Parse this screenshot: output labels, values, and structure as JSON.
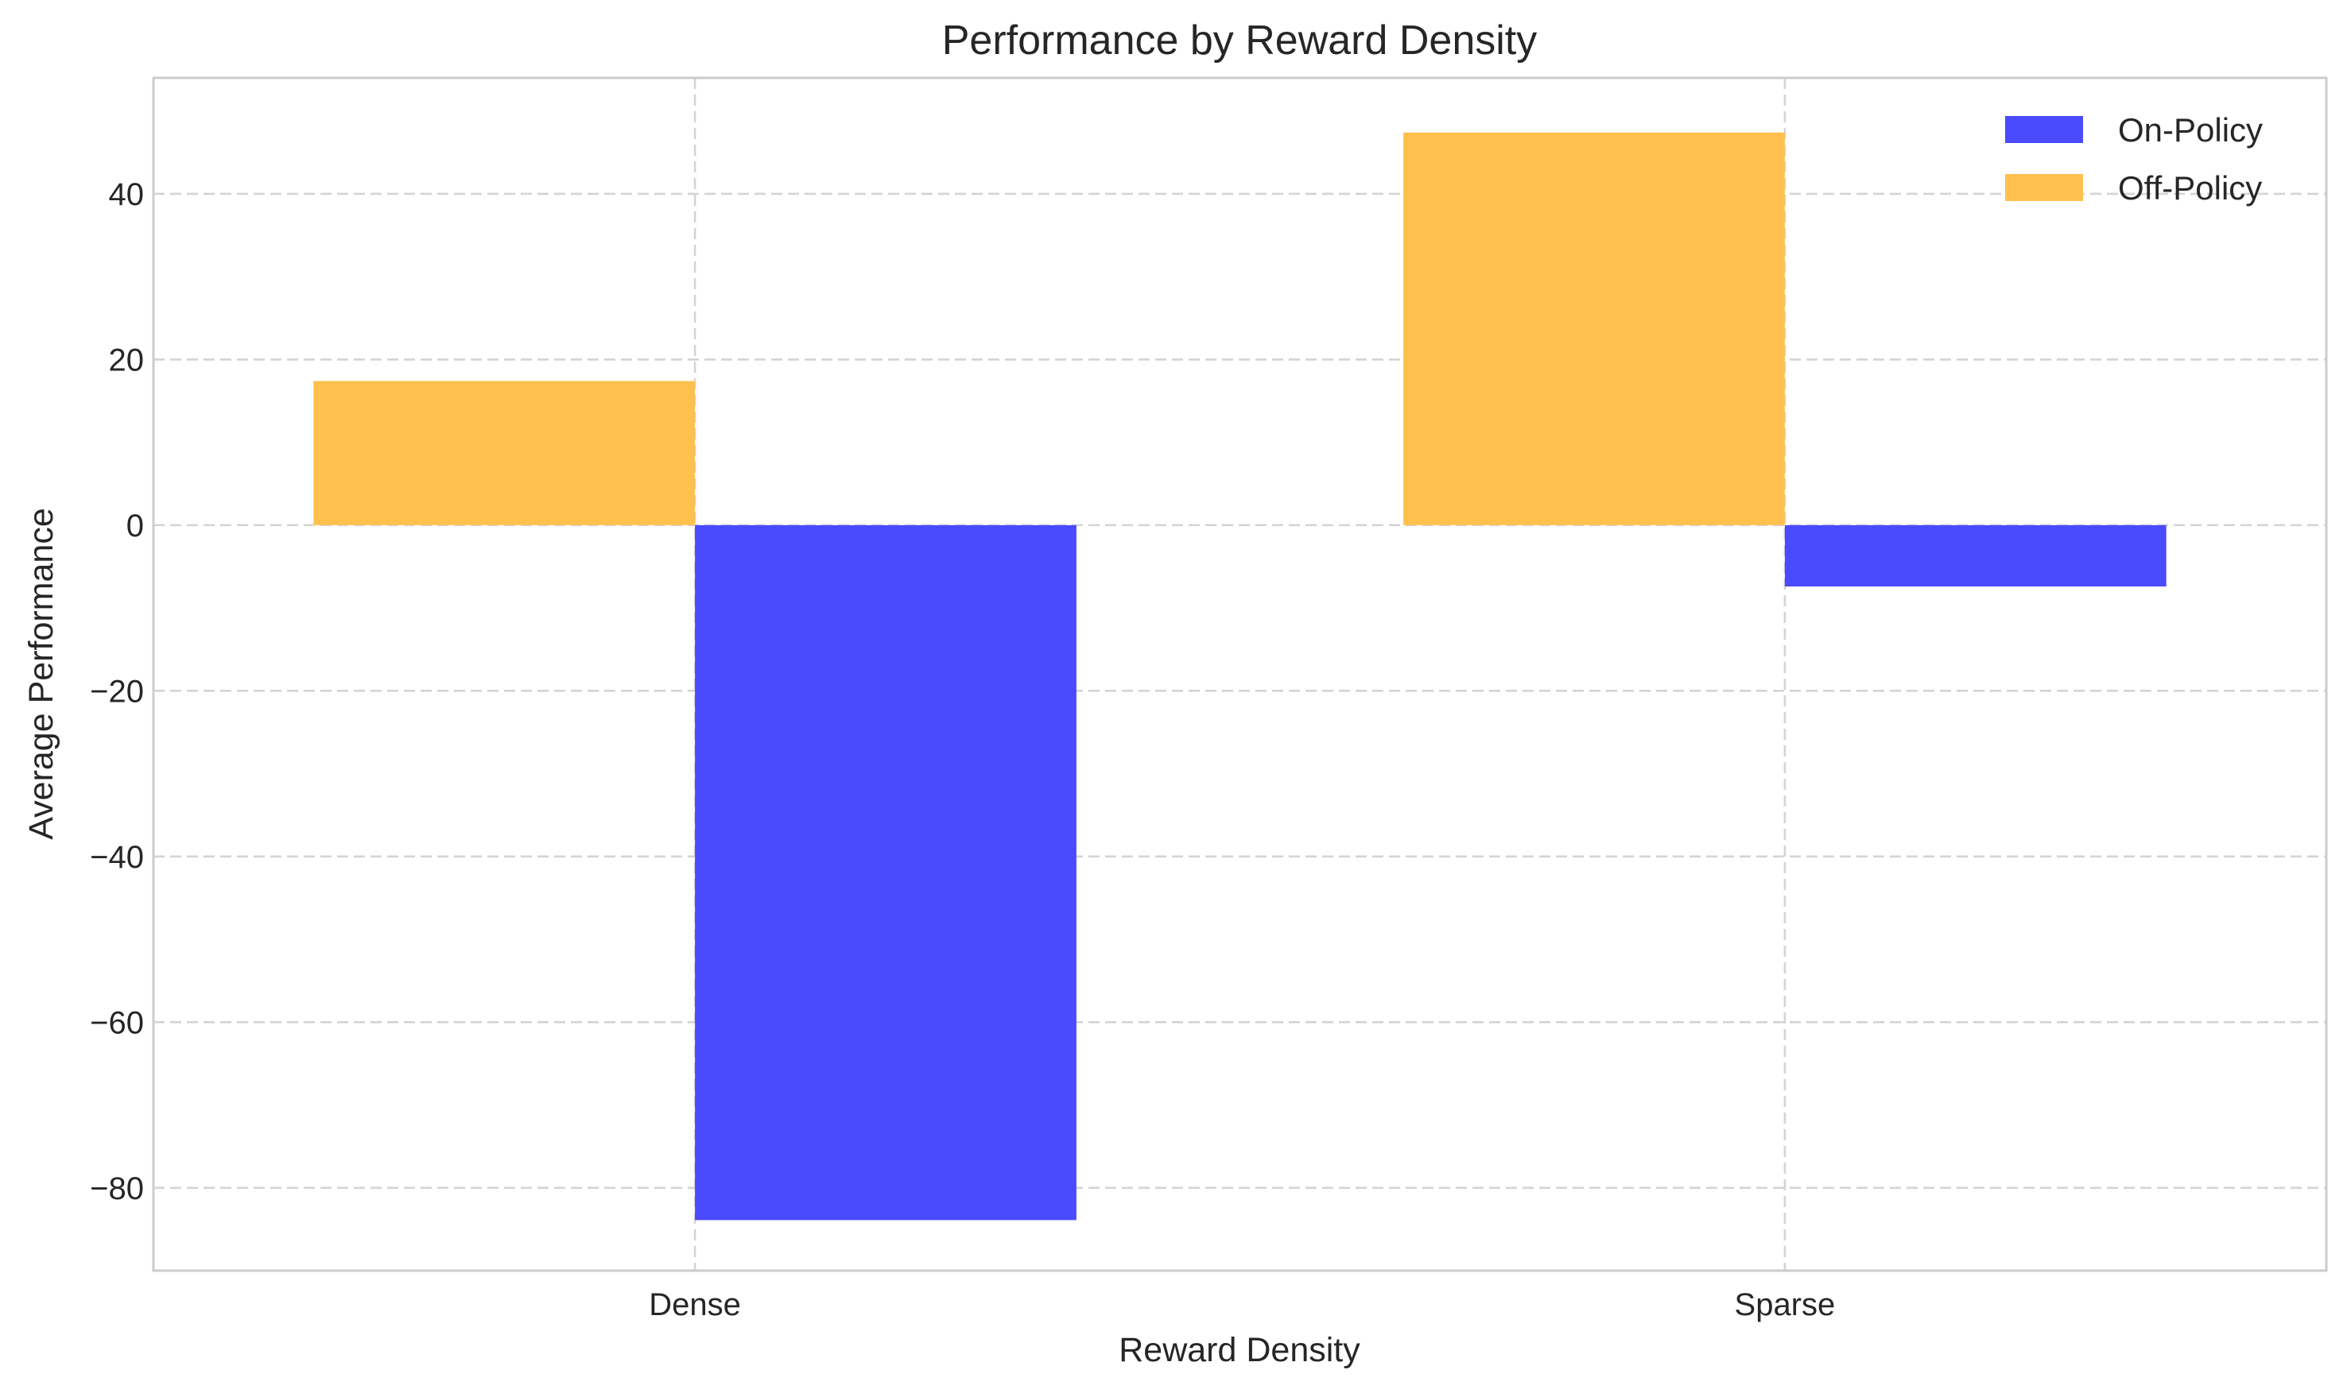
{
  "chart_data": {
    "type": "bar",
    "title": "Performance by Reward Density",
    "xlabel": "Reward Density",
    "ylabel": "Average Performance",
    "categories": [
      "Dense",
      "Sparse"
    ],
    "series": [
      {
        "name": "On-Policy",
        "color": "#4a4aff",
        "values": [
          -83.9,
          -7.4
        ]
      },
      {
        "name": "Off-Policy",
        "color": "#ffc04d",
        "values": [
          17.4,
          47.4
        ]
      }
    ],
    "ylim": [
      -90,
      54
    ],
    "yticks": [
      -80,
      -60,
      -40,
      -20,
      0,
      20,
      40
    ],
    "grid": true,
    "legend_position": "top-right"
  }
}
